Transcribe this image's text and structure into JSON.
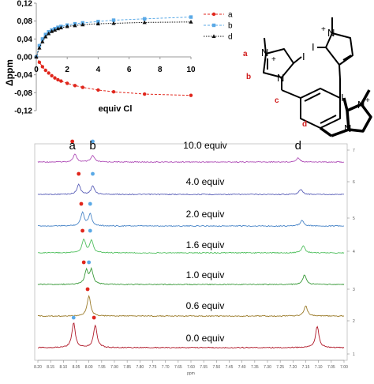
{
  "chart_data": [
    {
      "type": "scatter",
      "title": "",
      "xlabel": "equiv Cl",
      "ylabel": "Δppm",
      "xlim": [
        0,
        10
      ],
      "ylim": [
        -0.12,
        0.12
      ],
      "x_ticks": [
        "0",
        "2",
        "4",
        "6",
        "8",
        "10"
      ],
      "y_ticks": [
        "0,12",
        "0,08",
        "0,04",
        "0,00",
        "-0,04",
        "-0,08",
        "-0,12"
      ],
      "legend_position": "top-right",
      "series": [
        {
          "name": "a",
          "color": "#e0261c",
          "marker": "circle",
          "line": "dashed",
          "points": [
            [
              0,
              0
            ],
            [
              0.2,
              -0.012
            ],
            [
              0.4,
              -0.022
            ],
            [
              0.6,
              -0.03
            ],
            [
              0.8,
              -0.036
            ],
            [
              1.0,
              -0.042
            ],
            [
              1.2,
              -0.047
            ],
            [
              1.4,
              -0.051
            ],
            [
              1.6,
              -0.054
            ],
            [
              2.0,
              -0.059
            ],
            [
              2.5,
              -0.064
            ],
            [
              3.0,
              -0.068
            ],
            [
              4.0,
              -0.074
            ],
            [
              5.0,
              -0.078
            ],
            [
              7.0,
              -0.083
            ],
            [
              10.0,
              -0.086
            ]
          ]
        },
        {
          "name": "b",
          "color": "#5aa9e6",
          "marker": "square",
          "line": "dashed",
          "points": [
            [
              0,
              0
            ],
            [
              0.2,
              0.025
            ],
            [
              0.4,
              0.04
            ],
            [
              0.6,
              0.05
            ],
            [
              0.8,
              0.056
            ],
            [
              1.0,
              0.06
            ],
            [
              1.2,
              0.063
            ],
            [
              1.4,
              0.066
            ],
            [
              1.6,
              0.068
            ],
            [
              2.0,
              0.071
            ],
            [
              2.5,
              0.074
            ],
            [
              3.0,
              0.076
            ],
            [
              4.0,
              0.079
            ],
            [
              5.0,
              0.082
            ],
            [
              7.0,
              0.085
            ],
            [
              10.0,
              0.089
            ]
          ]
        },
        {
          "name": "d",
          "color": "#111111",
          "marker": "triangle",
          "line": "dotted",
          "points": [
            [
              0,
              0
            ],
            [
              0.2,
              0.02
            ],
            [
              0.4,
              0.034
            ],
            [
              0.6,
              0.045
            ],
            [
              0.8,
              0.052
            ],
            [
              1.0,
              0.057
            ],
            [
              1.2,
              0.06
            ],
            [
              1.4,
              0.063
            ],
            [
              1.6,
              0.065
            ],
            [
              2.0,
              0.068
            ],
            [
              2.5,
              0.07
            ],
            [
              3.0,
              0.072
            ],
            [
              4.0,
              0.074
            ],
            [
              5.0,
              0.075
            ],
            [
              7.0,
              0.077
            ],
            [
              10.0,
              0.078
            ]
          ]
        }
      ]
    },
    {
      "type": "line",
      "title": "",
      "xlabel": "ppm",
      "xlim": [
        8.2,
        7.0
      ],
      "x_ticks": [
        "8.20",
        "8.15",
        "8.10",
        "8.05",
        "8.00",
        "7.95",
        "7.90",
        "7.85",
        "7.80",
        "7.75",
        "7.70",
        "7.65",
        "7.60",
        "7.55",
        "7.50",
        "7.45",
        "7.40",
        "7.35",
        "7.30",
        "7.25",
        "7.20",
        "7.15",
        "7.10",
        "7.05",
        "7.00"
      ],
      "y_ticks": [
        "1",
        "2",
        "3",
        "4",
        "5",
        "6",
        "7"
      ],
      "peak_labels": [
        "a",
        "b",
        "d"
      ],
      "series": [
        {
          "name": "10.0 equiv",
          "color": "#b050b8",
          "peaks": [
            [
              8.055,
              0.55
            ],
            [
              7.985,
              0.45
            ],
            [
              7.18,
              0.3
            ]
          ],
          "markers": [
            {
              "ppm": 8.065,
              "color": "#e0261c"
            },
            {
              "ppm": 7.985,
              "color": "#5aa9e6"
            }
          ]
        },
        {
          "name": "4.0 equiv",
          "color": "#5a5fb8",
          "peaks": [
            [
              8.04,
              0.7
            ],
            [
              7.985,
              0.6
            ],
            [
              7.17,
              0.35
            ]
          ],
          "markers": [
            {
              "ppm": 8.04,
              "color": "#e0261c"
            },
            {
              "ppm": 7.985,
              "color": "#5aa9e6"
            }
          ]
        },
        {
          "name": "2.0 equiv",
          "color": "#4a86c8",
          "peaks": [
            [
              8.025,
              0.85
            ],
            [
              7.995,
              0.75
            ],
            [
              7.165,
              0.35
            ]
          ],
          "markers": [
            {
              "ppm": 8.03,
              "color": "#e0261c"
            },
            {
              "ppm": 7.995,
              "color": "#5aa9e6"
            }
          ]
        },
        {
          "name": "1.6 equiv",
          "color": "#52c060",
          "peaks": [
            [
              8.02,
              0.85
            ],
            [
              7.99,
              0.8
            ],
            [
              7.16,
              0.45
            ]
          ],
          "markers": [
            {
              "ppm": 8.025,
              "color": "#e0261c"
            },
            {
              "ppm": 7.995,
              "color": "#5aa9e6"
            }
          ]
        },
        {
          "name": "1.0 equiv",
          "color": "#3a9a3a",
          "peaks": [
            [
              8.01,
              0.85
            ],
            [
              7.99,
              0.9
            ],
            [
              7.155,
              0.6
            ]
          ],
          "markers": [
            {
              "ppm": 8.02,
              "color": "#e0261c"
            },
            {
              "ppm": 8.0,
              "color": "#5aa9e6"
            }
          ]
        },
        {
          "name": "0.6 equiv",
          "color": "#9a7a28",
          "peaks": [
            [
              8.0,
              1.0
            ],
            [
              7.15,
              0.5
            ]
          ],
          "markers": [
            {
              "ppm": 8.005,
              "color": "#e0261c"
            }
          ]
        },
        {
          "name": "0.0 equiv",
          "color": "#b01828",
          "peaks": [
            [
              8.06,
              1.05
            ],
            [
              7.975,
              0.95
            ],
            [
              7.105,
              0.9
            ]
          ],
          "markers": [
            {
              "ppm": 8.06,
              "color": "#5aa9e6"
            },
            {
              "ppm": 7.98,
              "color": "#e0261c"
            }
          ]
        }
      ]
    }
  ],
  "structure": {
    "labels": {
      "a": "a",
      "b": "b",
      "c": "c",
      "d": "d"
    },
    "atoms": {
      "N": "N",
      "I": "I",
      "plus": "+"
    },
    "label_color": "#d01c1c"
  }
}
